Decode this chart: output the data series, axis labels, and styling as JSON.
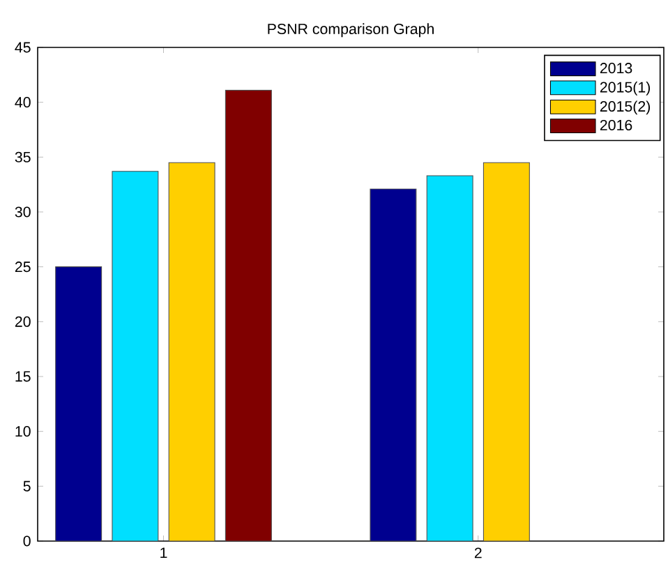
{
  "chart_data": {
    "type": "bar",
    "title": "PSNR comparison Graph",
    "categories": [
      "1",
      "2"
    ],
    "series": [
      {
        "name": "2013",
        "color": "#00008f",
        "values": [
          25,
          32.1
        ]
      },
      {
        "name": "2015(1)",
        "color": "#00dfff",
        "values": [
          33.7,
          33.3
        ]
      },
      {
        "name": "2015(2)",
        "color": "#ffcf00",
        "values": [
          34.5,
          34.5
        ]
      },
      {
        "name": "2016",
        "color": "#800000",
        "values": [
          41.1,
          null
        ]
      }
    ],
    "ylim": [
      0,
      45
    ],
    "yticks": [
      0,
      5,
      10,
      15,
      20,
      25,
      30,
      35,
      40,
      45
    ],
    "legend": "top right"
  }
}
